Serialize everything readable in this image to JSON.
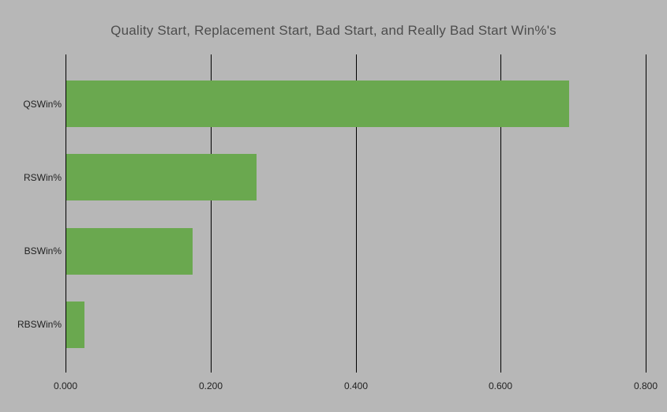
{
  "colors": {
    "background": "#b7b7b7",
    "bar": "#6aa84f",
    "title_text": "#4d4d4d",
    "axis_text": "#222222",
    "gridline": "#000000"
  },
  "chart_data": {
    "type": "bar",
    "orientation": "horizontal",
    "title": "Quality Start, Replacement Start, Bad Start, and Really Bad Start Win%'s",
    "categories": [
      "QSWin%",
      "RSWin%",
      "BSWin%",
      "RBSWin%"
    ],
    "values": [
      0.693,
      0.262,
      0.174,
      0.025
    ],
    "xlabel": "",
    "ylabel": "",
    "xlim": [
      0,
      0.8
    ],
    "x_ticks": [
      {
        "value": 0.0,
        "label": "0.000"
      },
      {
        "value": 0.2,
        "label": "0.200"
      },
      {
        "value": 0.4,
        "label": "0.400"
      },
      {
        "value": 0.6,
        "label": "0.600"
      },
      {
        "value": 0.8,
        "label": "0.800"
      }
    ],
    "grid": "vertical-on",
    "legend": "none",
    "value_labels": "none"
  }
}
